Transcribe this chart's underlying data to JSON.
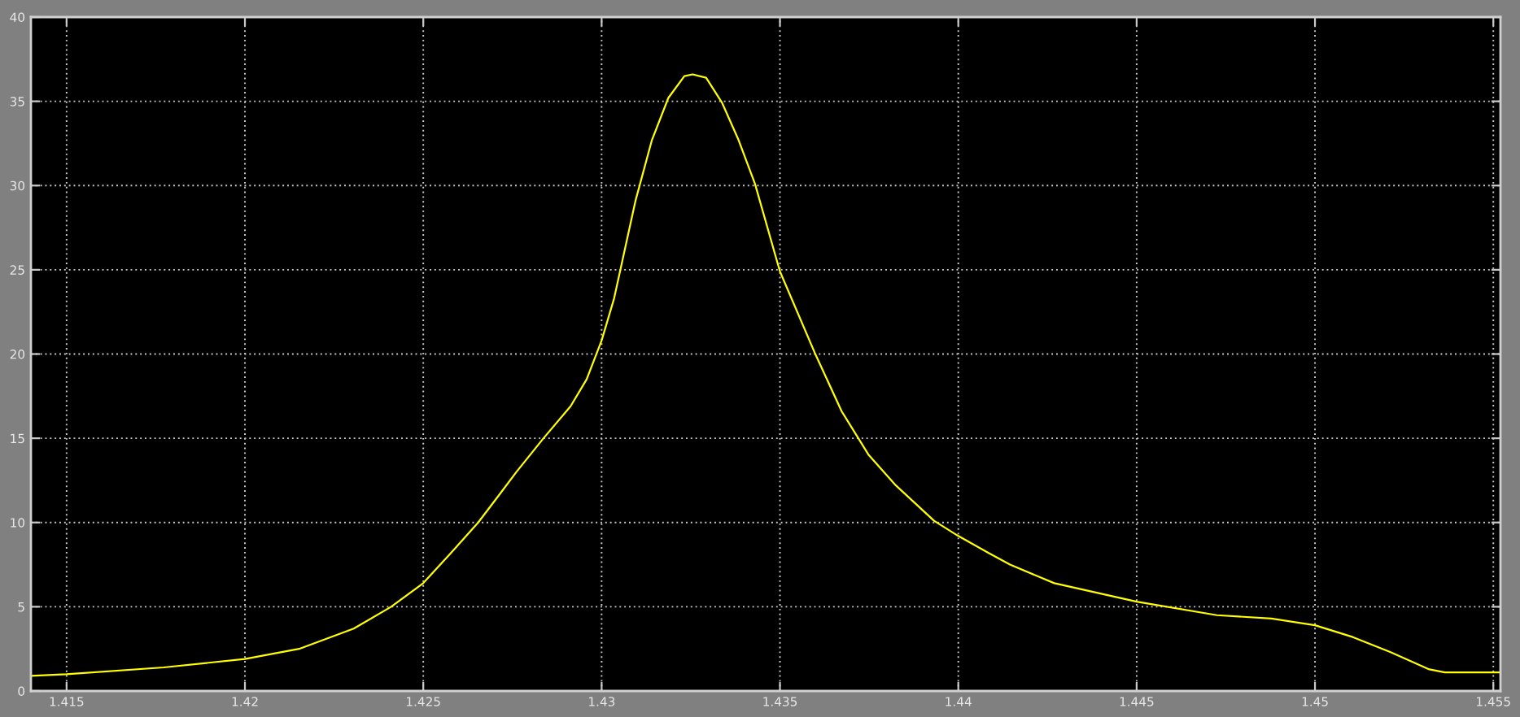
{
  "chart_data": {
    "type": "line",
    "x": [
      1.414,
      1.415,
      1.41772,
      1.42,
      1.42152,
      1.42305,
      1.4241,
      1.425,
      1.42578,
      1.42654,
      1.42715,
      1.42761,
      1.42837,
      1.42913,
      1.42958,
      1.43,
      1.43035,
      1.43065,
      1.43095,
      1.43141,
      1.43187,
      1.43232,
      1.43255,
      1.43293,
      1.43338,
      1.43384,
      1.4343,
      1.435,
      1.43597,
      1.43673,
      1.43749,
      1.43825,
      1.43932,
      1.44,
      1.44084,
      1.44145,
      1.44269,
      1.445,
      1.44725,
      1.44878,
      1.45,
      1.45106,
      1.45212,
      1.45318,
      1.45364,
      1.45516
    ],
    "series": [
      {
        "color": "#ffff00",
        "values": [
          0.9,
          1.0,
          1.4,
          1.9,
          2.5,
          3.7,
          5.0,
          6.4,
          8.2,
          10.0,
          11.7,
          13.0,
          15.0,
          16.9,
          18.5,
          20.8,
          23.3,
          26.2,
          29.1,
          32.7,
          35.2,
          36.5,
          36.6,
          36.4,
          34.9,
          32.7,
          30.1,
          24.9,
          20.1,
          16.6,
          14.0,
          12.2,
          10.1,
          9.2,
          8.2,
          7.5,
          6.4,
          5.3,
          4.5,
          4.3,
          3.9,
          3.2,
          2.3,
          1.3,
          1.1,
          1.1
        ]
      }
    ],
    "xlim": [
      1.414,
      1.4552
    ],
    "ylim": [
      0,
      40
    ],
    "xticks": [
      1.415,
      1.42,
      1.425,
      1.43,
      1.435,
      1.44,
      1.445,
      1.45,
      1.455
    ],
    "yticks": [
      0,
      5,
      10,
      15,
      20,
      25,
      30,
      35,
      40
    ],
    "grid": true,
    "line_style": "solid"
  }
}
